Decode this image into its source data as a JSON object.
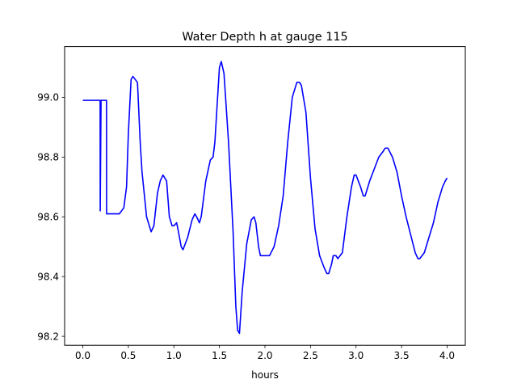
{
  "chart_data": {
    "type": "line",
    "title": "Water Depth h at gauge 115",
    "xlabel": "hours",
    "ylabel": "",
    "xlim": [
      -0.2,
      4.2
    ],
    "ylim": [
      98.17,
      99.17
    ],
    "x_ticks": [
      0.0,
      0.5,
      1.0,
      1.5,
      2.0,
      2.5,
      3.0,
      3.5,
      4.0
    ],
    "x_tick_labels": [
      "0.0",
      "0.5",
      "1.0",
      "1.5",
      "2.0",
      "2.5",
      "3.0",
      "3.5",
      "4.0"
    ],
    "y_ticks": [
      98.2,
      98.4,
      98.6,
      98.8,
      99.0
    ],
    "y_tick_labels": [
      "98.2",
      "98.4",
      "98.6",
      "98.8",
      "99.0"
    ],
    "grid": false,
    "legend": "none",
    "series": [
      {
        "color": "#0000ff",
        "x": [
          0.0,
          0.18,
          0.181,
          0.19,
          0.191,
          0.2,
          0.201,
          0.26,
          0.261,
          0.27,
          0.3,
          0.35,
          0.4,
          0.45,
          0.48,
          0.5,
          0.53,
          0.55,
          0.6,
          0.63,
          0.65,
          0.7,
          0.75,
          0.78,
          0.82,
          0.85,
          0.88,
          0.92,
          0.95,
          0.98,
          1.0,
          1.03,
          1.05,
          1.08,
          1.1,
          1.15,
          1.2,
          1.23,
          1.25,
          1.28,
          1.3,
          1.35,
          1.4,
          1.43,
          1.45,
          1.47,
          1.5,
          1.52,
          1.55,
          1.6,
          1.65,
          1.68,
          1.7,
          1.72,
          1.75,
          1.8,
          1.85,
          1.88,
          1.9,
          1.93,
          1.95,
          1.98,
          2.0,
          2.05,
          2.1,
          2.15,
          2.2,
          2.25,
          2.3,
          2.35,
          2.38,
          2.4,
          2.45,
          2.5,
          2.55,
          2.6,
          2.65,
          2.68,
          2.7,
          2.73,
          2.75,
          2.78,
          2.8,
          2.85,
          2.9,
          2.95,
          2.98,
          3.0,
          3.05,
          3.08,
          3.1,
          3.15,
          3.2,
          3.25,
          3.3,
          3.32,
          3.35,
          3.4,
          3.45,
          3.5,
          3.55,
          3.6,
          3.65,
          3.68,
          3.7,
          3.75,
          3.8,
          3.85,
          3.9,
          3.95,
          3.98,
          4.0
        ],
        "y": [
          98.99,
          98.99,
          98.99,
          98.99,
          98.62,
          98.99,
          98.99,
          98.99,
          98.61,
          98.61,
          98.61,
          98.61,
          98.61,
          98.63,
          98.7,
          98.88,
          99.06,
          99.07,
          99.05,
          98.85,
          98.75,
          98.6,
          98.55,
          98.57,
          98.68,
          98.72,
          98.74,
          98.72,
          98.6,
          98.57,
          98.57,
          98.58,
          98.55,
          98.5,
          98.49,
          98.53,
          98.59,
          98.61,
          98.6,
          98.58,
          98.6,
          98.72,
          98.79,
          98.8,
          98.85,
          98.95,
          99.1,
          99.12,
          99.08,
          98.85,
          98.55,
          98.3,
          98.22,
          98.21,
          98.35,
          98.51,
          98.59,
          98.6,
          98.58,
          98.5,
          98.47,
          98.47,
          98.47,
          98.47,
          98.5,
          98.57,
          98.67,
          98.85,
          99.0,
          99.05,
          99.05,
          99.04,
          98.95,
          98.73,
          98.56,
          98.47,
          98.43,
          98.41,
          98.41,
          98.44,
          98.47,
          98.47,
          98.46,
          98.48,
          98.6,
          98.7,
          98.74,
          98.74,
          98.7,
          98.67,
          98.67,
          98.72,
          98.76,
          98.8,
          98.82,
          98.83,
          98.83,
          98.8,
          98.75,
          98.67,
          98.6,
          98.54,
          98.48,
          98.46,
          98.46,
          98.48,
          98.53,
          98.58,
          98.65,
          98.7,
          98.72,
          98.73
        ]
      }
    ]
  }
}
